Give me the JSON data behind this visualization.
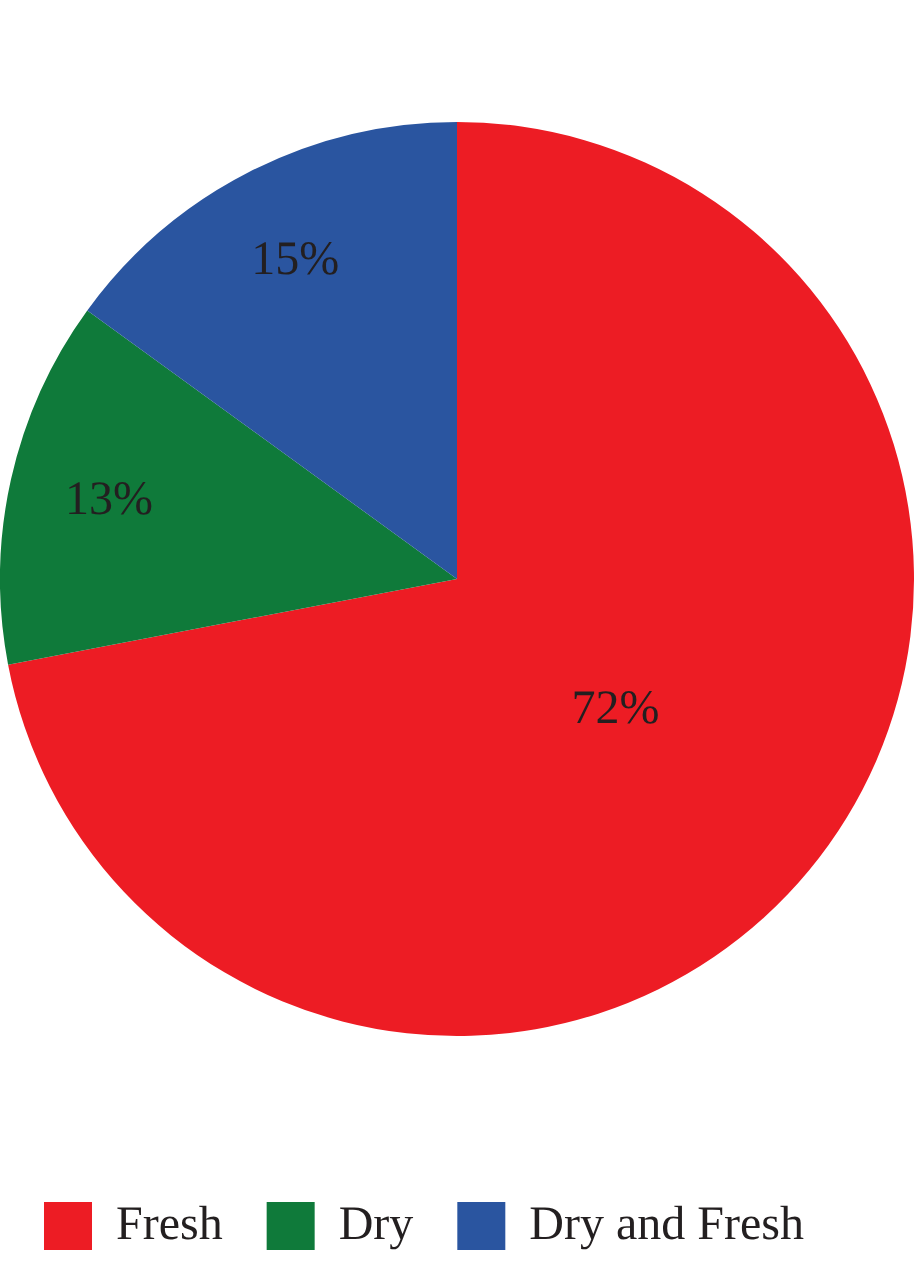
{
  "chart_data": {
    "type": "pie",
    "categories": [
      "Fresh",
      "Dry",
      "Dry and Fresh"
    ],
    "values": [
      72,
      13,
      15
    ],
    "colors": [
      "#ed1c24",
      "#0f7a3a",
      "#2a55a0"
    ],
    "value_labels": [
      "72%",
      "13%",
      "15%"
    ],
    "legend": "bottom"
  }
}
